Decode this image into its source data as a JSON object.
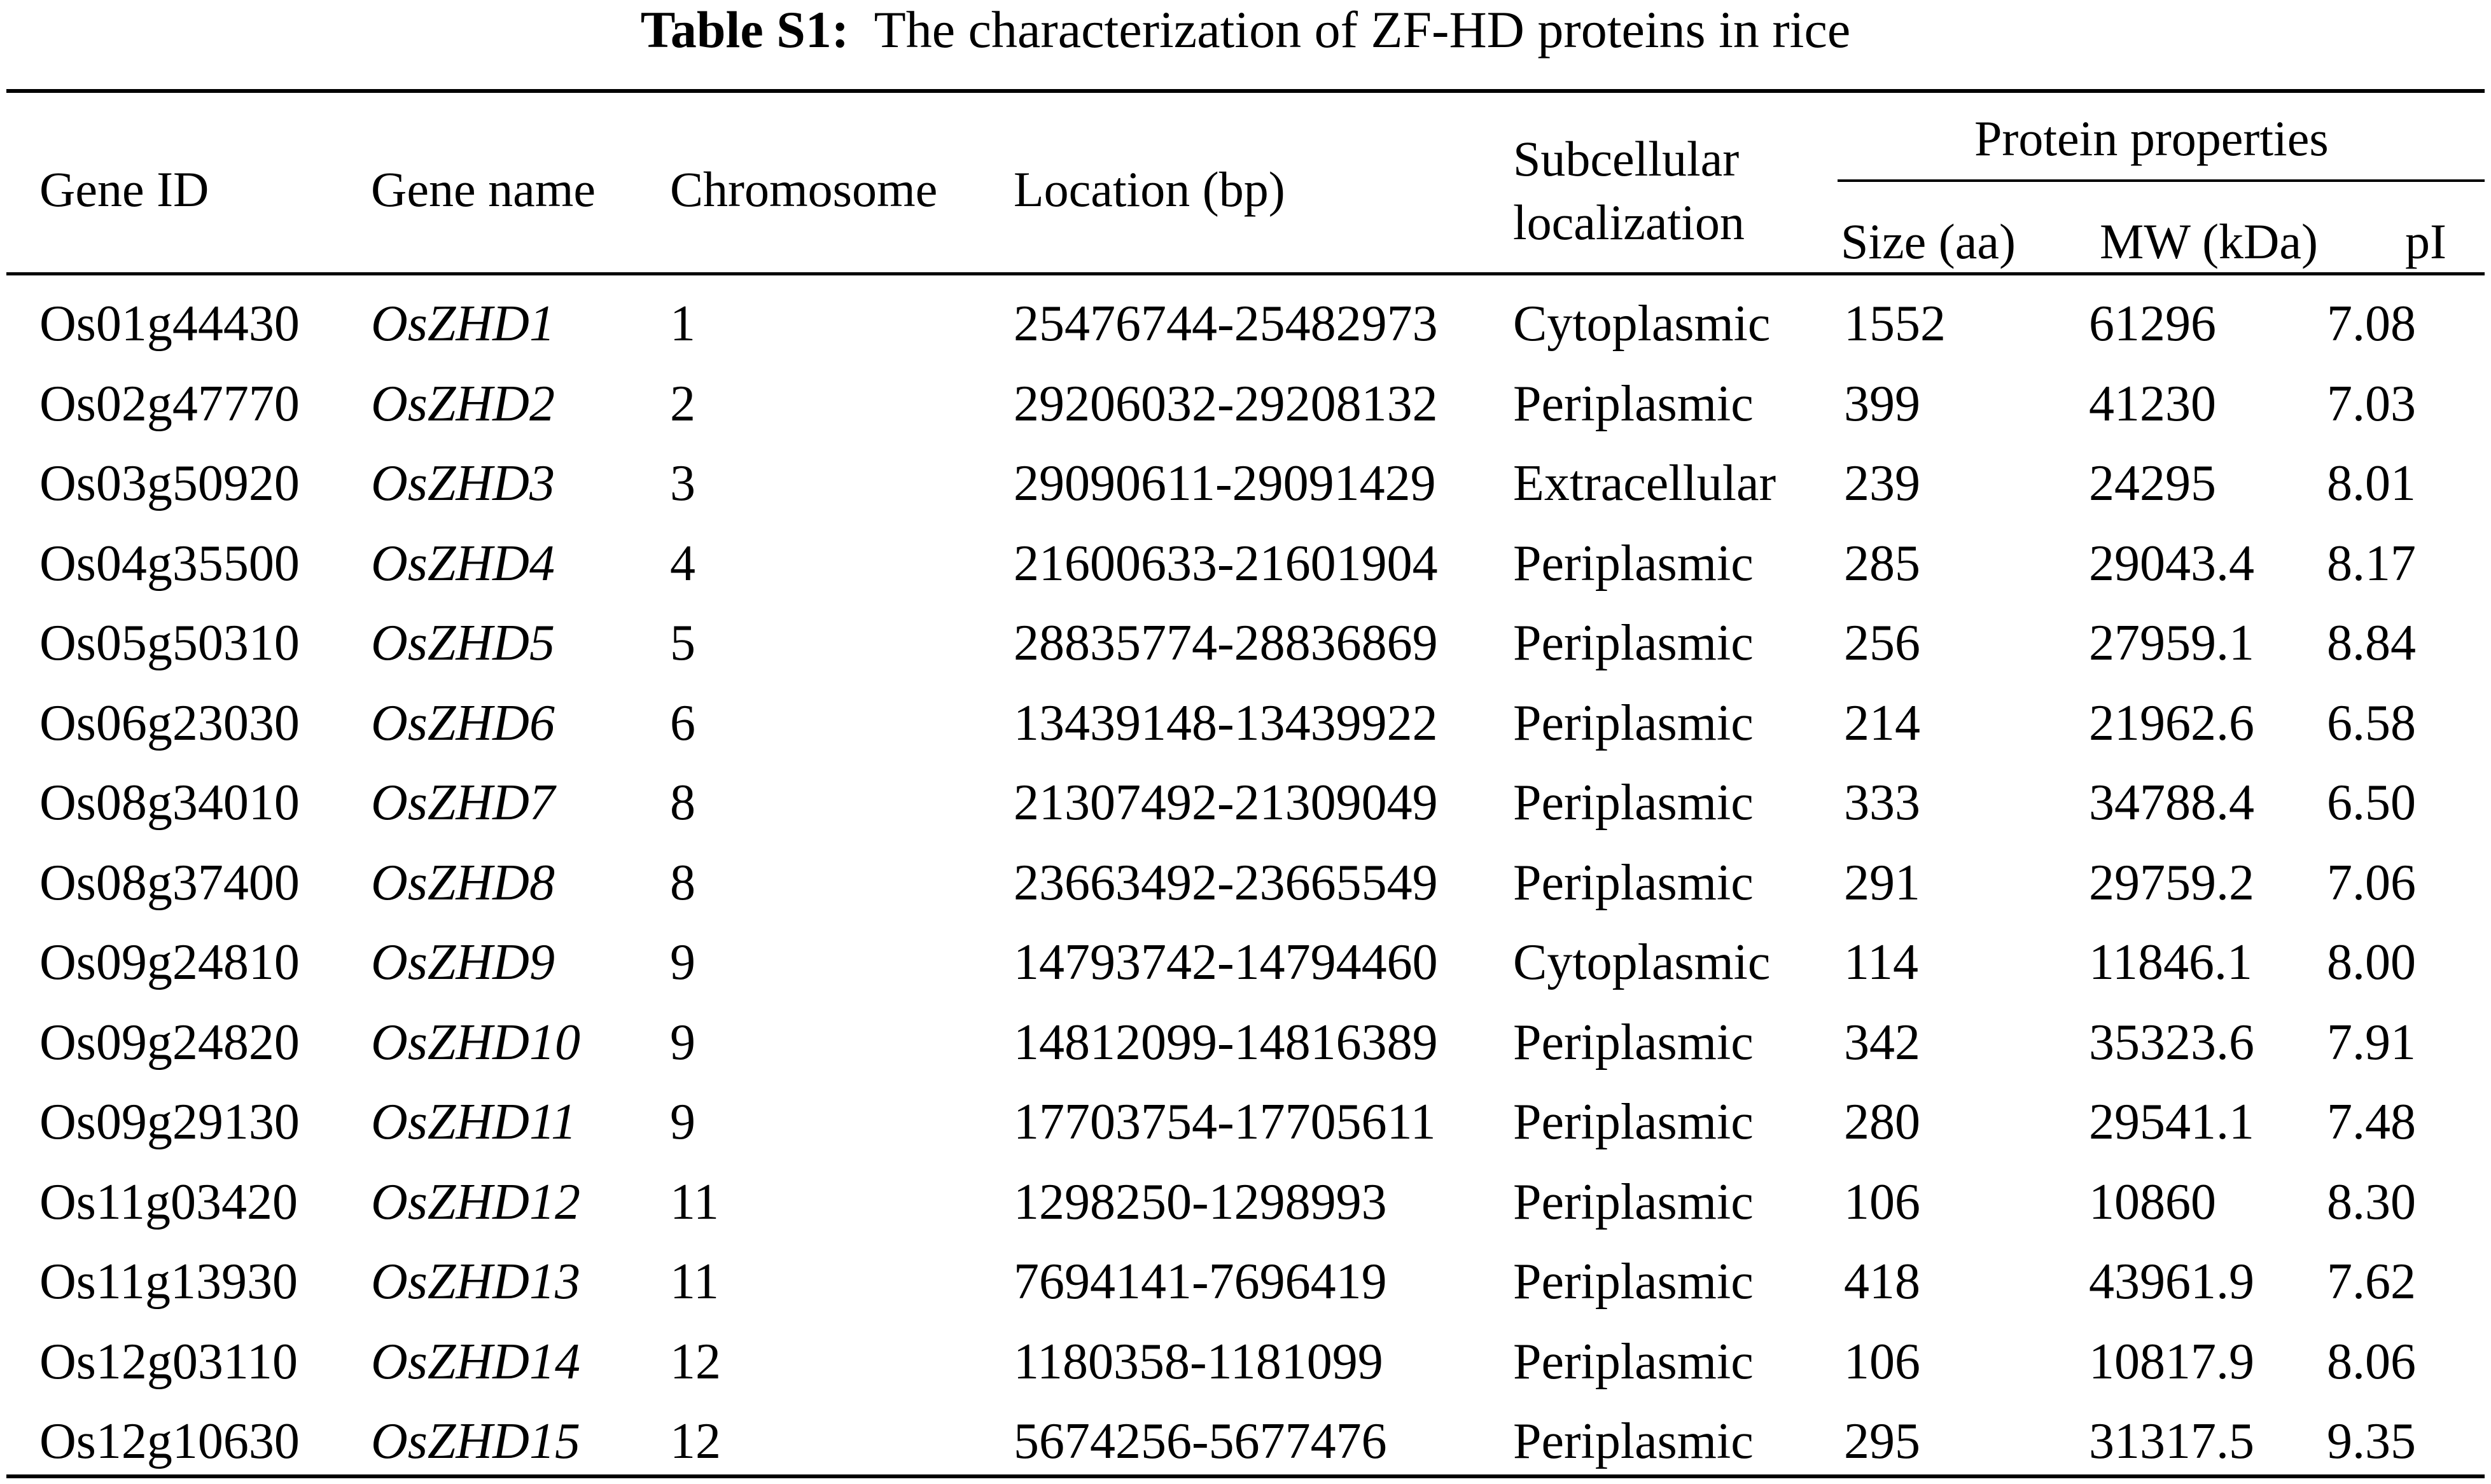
{
  "title": {
    "label": "Table S1:",
    "text": "The characterization of ZF-HD proteins in rice"
  },
  "headers": {
    "gene_id": "Gene ID",
    "gene_name": "Gene name",
    "chromosome": "Chromosome",
    "location": "Location (bp)",
    "subcellular_line1": "Subcellular",
    "subcellular_line2": "localization",
    "protein_properties": "Protein properties",
    "size": "Size (aa)",
    "mw": "MW (kDa)",
    "pi": "pI"
  },
  "rows": [
    {
      "gene_id": "Os01g44430",
      "gene_name": "OsZHD1",
      "chromosome": "1",
      "location": "25476744-25482973",
      "localization": "Cytoplasmic",
      "size": "1552",
      "mw": "61296",
      "pi": "7.08"
    },
    {
      "gene_id": "Os02g47770",
      "gene_name": "OsZHD2",
      "chromosome": "2",
      "location": "29206032-29208132",
      "localization": "Periplasmic",
      "size": "399",
      "mw": "41230",
      "pi": "7.03"
    },
    {
      "gene_id": "Os03g50920",
      "gene_name": "OsZHD3",
      "chromosome": "3",
      "location": "29090611-29091429",
      "localization": "Extracellular",
      "size": "239",
      "mw": "24295",
      "pi": "8.01"
    },
    {
      "gene_id": "Os04g35500",
      "gene_name": "OsZHD4",
      "chromosome": "4",
      "location": "21600633-21601904",
      "localization": "Periplasmic",
      "size": "285",
      "mw": "29043.4",
      "pi": "8.17"
    },
    {
      "gene_id": "Os05g50310",
      "gene_name": "OsZHD5",
      "chromosome": "5",
      "location": "28835774-28836869",
      "localization": "Periplasmic",
      "size": "256",
      "mw": "27959.1",
      "pi": "8.84"
    },
    {
      "gene_id": "Os06g23030",
      "gene_name": "OsZHD6",
      "chromosome": "6",
      "location": "13439148-13439922",
      "localization": "Periplasmic",
      "size": "214",
      "mw": "21962.6",
      "pi": "6.58"
    },
    {
      "gene_id": "Os08g34010",
      "gene_name": "OsZHD7",
      "chromosome": "8",
      "location": "21307492-21309049",
      "localization": "Periplasmic",
      "size": "333",
      "mw": "34788.4",
      "pi": "6.50"
    },
    {
      "gene_id": "Os08g37400",
      "gene_name": "OsZHD8",
      "chromosome": "8",
      "location": "23663492-23665549",
      "localization": "Periplasmic",
      "size": "291",
      "mw": "29759.2",
      "pi": "7.06"
    },
    {
      "gene_id": "Os09g24810",
      "gene_name": "OsZHD9",
      "chromosome": "9",
      "location": "14793742-14794460",
      "localization": "Cytoplasmic",
      "size": "114",
      "mw": "11846.1",
      "pi": "8.00"
    },
    {
      "gene_id": "Os09g24820",
      "gene_name": "OsZHD10",
      "chromosome": "9",
      "location": "14812099-14816389",
      "localization": "Periplasmic",
      "size": "342",
      "mw": "35323.6",
      "pi": "7.91"
    },
    {
      "gene_id": "Os09g29130",
      "gene_name": "OsZHD11",
      "chromosome": "9",
      "location": "17703754-17705611",
      "localization": "Periplasmic",
      "size": "280",
      "mw": "29541.1",
      "pi": "7.48"
    },
    {
      "gene_id": "Os11g03420",
      "gene_name": "OsZHD12",
      "chromosome": "11",
      "location": "1298250-1298993",
      "localization": "Periplasmic",
      "size": "106",
      "mw": "10860",
      "pi": "8.30"
    },
    {
      "gene_id": "Os11g13930",
      "gene_name": "OsZHD13",
      "chromosome": "11",
      "location": "7694141-7696419",
      "localization": "Periplasmic",
      "size": "418",
      "mw": "43961.9",
      "pi": "7.62"
    },
    {
      "gene_id": "Os12g03110",
      "gene_name": "OsZHD14",
      "chromosome": "12",
      "location": "1180358-1181099",
      "localization": "Periplasmic",
      "size": "106",
      "mw": "10817.9",
      "pi": "8.06"
    },
    {
      "gene_id": "Os12g10630",
      "gene_name": "OsZHD15",
      "chromosome": "12",
      "location": "5674256-5677476",
      "localization": "Periplasmic",
      "size": "295",
      "mw": "31317.5",
      "pi": "9.35"
    }
  ]
}
